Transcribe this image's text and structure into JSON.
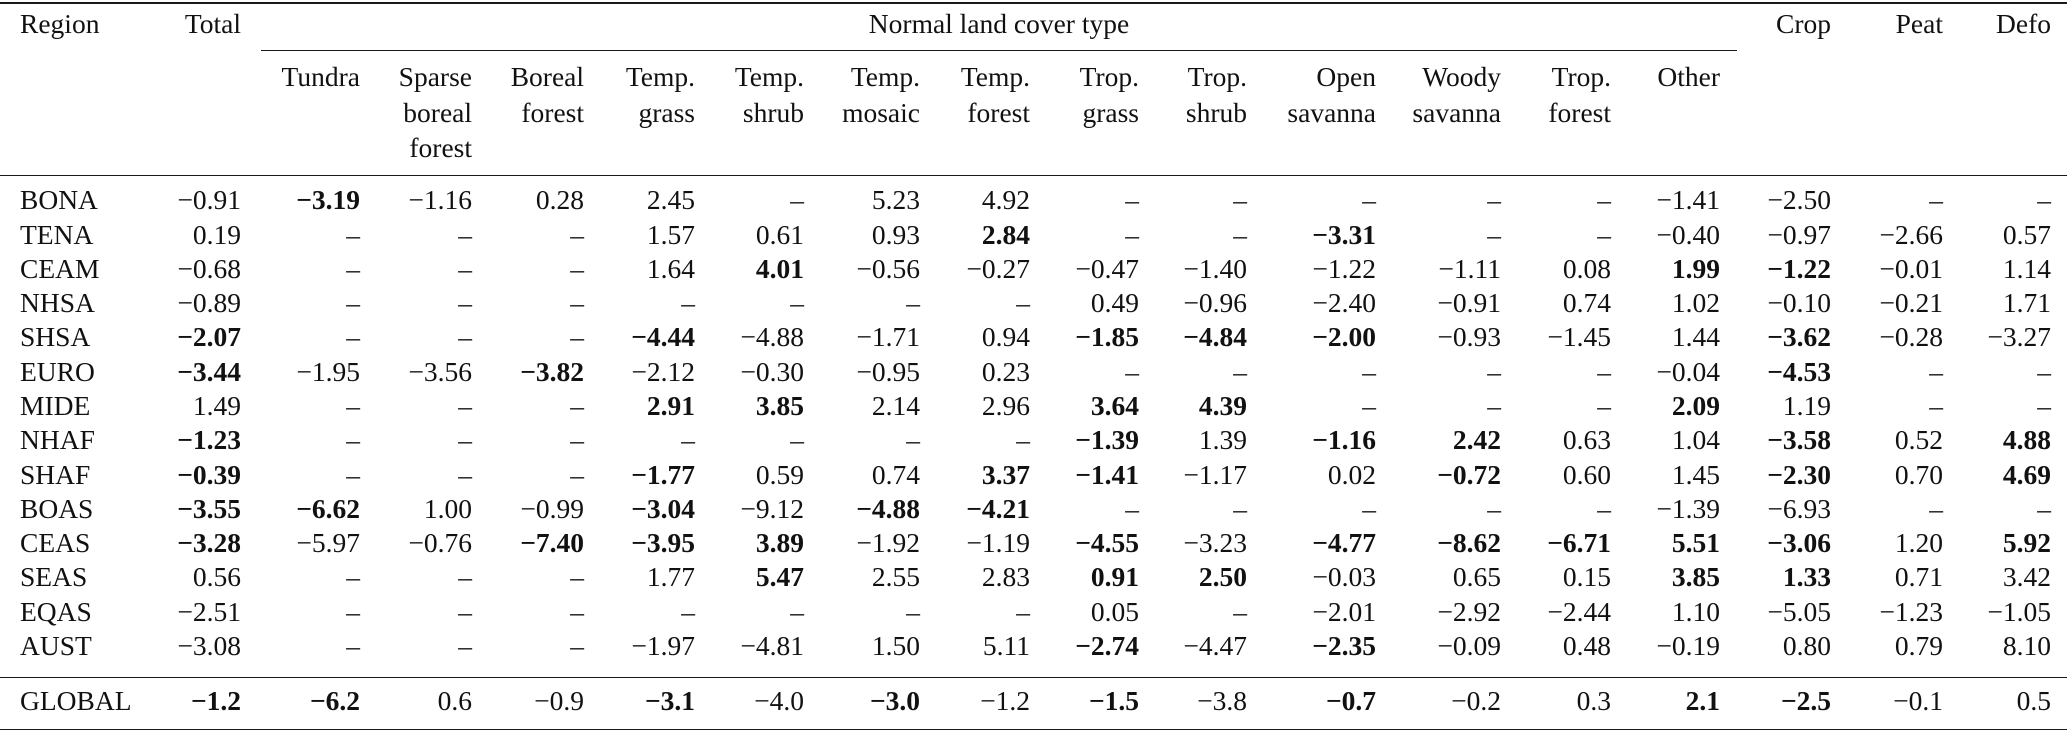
{
  "table": {
    "header": {
      "region": "Region",
      "total": "Total",
      "group": "Normal land cover type",
      "crop": "Crop",
      "peat": "Peat",
      "defo": "Defo",
      "land_cover_types": [
        [
          "Tundra"
        ],
        [
          "Sparse",
          "boreal",
          "forest"
        ],
        [
          "Boreal",
          "forest"
        ],
        [
          "Temp.",
          "grass"
        ],
        [
          "Temp.",
          "shrub"
        ],
        [
          "Temp.",
          "mosaic"
        ],
        [
          "Temp.",
          "forest"
        ],
        [
          "Trop.",
          "grass"
        ],
        [
          "Trop.",
          "shrub"
        ],
        [
          "Open",
          "savanna"
        ],
        [
          "Woody",
          "savanna"
        ],
        [
          "Trop.",
          "forest"
        ],
        [
          "Other"
        ]
      ]
    },
    "rows": [
      {
        "region": "BONA",
        "values": [
          "−0.91",
          "−3.19",
          "−1.16",
          "0.28",
          "2.45",
          "–",
          "5.23",
          "4.92",
          "–",
          "–",
          "–",
          "–",
          "–",
          "−1.41",
          "−2.50",
          "–",
          "–"
        ],
        "bold": [
          1
        ]
      },
      {
        "region": "TENA",
        "values": [
          "0.19",
          "–",
          "–",
          "–",
          "1.57",
          "0.61",
          "0.93",
          "2.84",
          "–",
          "–",
          "−3.31",
          "–",
          "–",
          "−0.40",
          "−0.97",
          "−2.66",
          "0.57"
        ],
        "bold": [
          7,
          10
        ]
      },
      {
        "region": "CEAM",
        "values": [
          "−0.68",
          "–",
          "–",
          "–",
          "1.64",
          "4.01",
          "−0.56",
          "−0.27",
          "−0.47",
          "−1.40",
          "−1.22",
          "−1.11",
          "0.08",
          "1.99",
          "−1.22",
          "−0.01",
          "1.14"
        ],
        "bold": [
          5,
          13,
          14
        ]
      },
      {
        "region": "NHSA",
        "values": [
          "−0.89",
          "–",
          "–",
          "–",
          "–",
          "–",
          "–",
          "–",
          "0.49",
          "−0.96",
          "−2.40",
          "−0.91",
          "0.74",
          "1.02",
          "−0.10",
          "−0.21",
          "1.71"
        ],
        "bold": []
      },
      {
        "region": "SHSA",
        "values": [
          "−2.07",
          "–",
          "–",
          "–",
          "−4.44",
          "−4.88",
          "−1.71",
          "0.94",
          "−1.85",
          "−4.84",
          "−2.00",
          "−0.93",
          "−1.45",
          "1.44",
          "−3.62",
          "−0.28",
          "−3.27"
        ],
        "bold": [
          0,
          4,
          8,
          9,
          10,
          14
        ]
      },
      {
        "region": "EURO",
        "values": [
          "−3.44",
          "−1.95",
          "−3.56",
          "−3.82",
          "−2.12",
          "−0.30",
          "−0.95",
          "0.23",
          "–",
          "–",
          "–",
          "–",
          "–",
          "−0.04",
          "−4.53",
          "–",
          "–"
        ],
        "bold": [
          0,
          3,
          14
        ]
      },
      {
        "region": "MIDE",
        "values": [
          "1.49",
          "–",
          "–",
          "–",
          "2.91",
          "3.85",
          "2.14",
          "2.96",
          "3.64",
          "4.39",
          "–",
          "–",
          "–",
          "2.09",
          "1.19",
          "–",
          "–"
        ],
        "bold": [
          4,
          5,
          8,
          9,
          13
        ]
      },
      {
        "region": "NHAF",
        "values": [
          "−1.23",
          "–",
          "–",
          "–",
          "–",
          "–",
          "–",
          "–",
          "−1.39",
          "1.39",
          "−1.16",
          "2.42",
          "0.63",
          "1.04",
          "−3.58",
          "0.52",
          "4.88"
        ],
        "bold": [
          0,
          8,
          10,
          11,
          14,
          16
        ]
      },
      {
        "region": "SHAF",
        "values": [
          "−0.39",
          "–",
          "–",
          "–",
          "−1.77",
          "0.59",
          "0.74",
          "3.37",
          "−1.41",
          "−1.17",
          "0.02",
          "−0.72",
          "0.60",
          "1.45",
          "−2.30",
          "0.70",
          "4.69"
        ],
        "bold": [
          0,
          4,
          7,
          8,
          11,
          14,
          16
        ]
      },
      {
        "region": "BOAS",
        "values": [
          "−3.55",
          "−6.62",
          "1.00",
          "−0.99",
          "−3.04",
          "−9.12",
          "−4.88",
          "−4.21",
          "–",
          "–",
          "–",
          "–",
          "–",
          "−1.39",
          "−6.93",
          "–",
          "–"
        ],
        "bold": [
          0,
          1,
          4,
          6,
          7
        ]
      },
      {
        "region": "CEAS",
        "values": [
          "−3.28",
          "−5.97",
          "−0.76",
          "−7.40",
          "−3.95",
          "3.89",
          "−1.92",
          "−1.19",
          "−4.55",
          "−3.23",
          "−4.77",
          "−8.62",
          "−6.71",
          "5.51",
          "−3.06",
          "1.20",
          "5.92"
        ],
        "bold": [
          0,
          3,
          4,
          5,
          8,
          10,
          11,
          12,
          13,
          14,
          16
        ]
      },
      {
        "region": "SEAS",
        "values": [
          "0.56",
          "–",
          "–",
          "–",
          "1.77",
          "5.47",
          "2.55",
          "2.83",
          "0.91",
          "2.50",
          "−0.03",
          "0.65",
          "0.15",
          "3.85",
          "1.33",
          "0.71",
          "3.42"
        ],
        "bold": [
          5,
          8,
          9,
          13,
          14
        ]
      },
      {
        "region": "EQAS",
        "values": [
          "−2.51",
          "–",
          "–",
          "–",
          "–",
          "–",
          "–",
          "–",
          "0.05",
          "–",
          "−2.01",
          "−2.92",
          "−2.44",
          "1.10",
          "−5.05",
          "−1.23",
          "−1.05"
        ],
        "bold": []
      },
      {
        "region": "AUST",
        "values": [
          "−3.08",
          "–",
          "–",
          "–",
          "−1.97",
          "−4.81",
          "1.50",
          "5.11",
          "−2.74",
          "−4.47",
          "−2.35",
          "−0.09",
          "0.48",
          "−0.19",
          "0.80",
          "0.79",
          "8.10"
        ],
        "bold": [
          8,
          10
        ]
      }
    ],
    "global": {
      "region": "GLOBAL",
      "values": [
        "−1.2",
        "−6.2",
        "0.6",
        "−0.9",
        "−3.1",
        "−4.0",
        "−3.0",
        "−1.2",
        "−1.5",
        "−3.8",
        "−0.7",
        "−0.2",
        "0.3",
        "2.1",
        "−2.5",
        "−0.1",
        "0.5"
      ],
      "bold": [
        0,
        1,
        4,
        6,
        8,
        10,
        13,
        14
      ]
    }
  }
}
